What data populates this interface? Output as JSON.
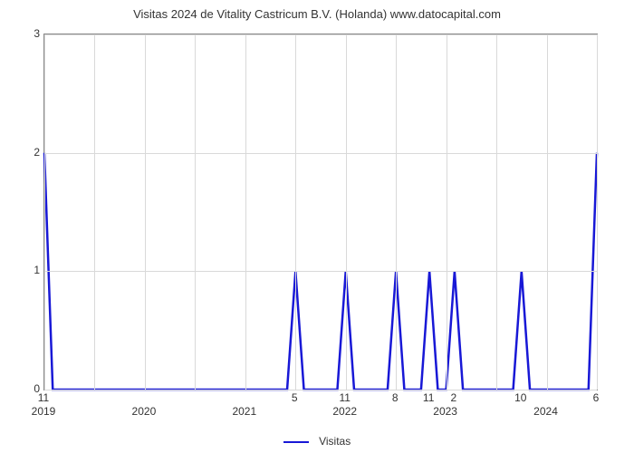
{
  "chart": {
    "type": "line",
    "title": "Visitas 2024 de Vitality Castricum B.V. (Holanda) www.datocapital.com",
    "title_fontsize": 13,
    "background_color": "#ffffff",
    "grid_color": "#d9d9d9",
    "border_color": "#888888",
    "line_color": "#1818d6",
    "line_width": 2.5,
    "y": {
      "min": 0,
      "max": 3,
      "ticks": [
        0,
        1,
        2,
        3
      ],
      "label_fontsize": 12
    },
    "x": {
      "domain_units": 66,
      "minor_ticks_every": 6,
      "major_labels": [
        {
          "u": 0,
          "text": "2019"
        },
        {
          "u": 12,
          "text": "2020"
        },
        {
          "u": 24,
          "text": "2021"
        },
        {
          "u": 36,
          "text": "2022"
        },
        {
          "u": 48,
          "text": "2023"
        },
        {
          "u": 60,
          "text": "2024"
        }
      ],
      "minor_labels": [
        {
          "u": 0,
          "text": "11"
        },
        {
          "u": 30,
          "text": "5"
        },
        {
          "u": 36,
          "text": "11"
        },
        {
          "u": 42,
          "text": "8"
        },
        {
          "u": 46,
          "text": "11"
        },
        {
          "u": 49,
          "text": "2"
        },
        {
          "u": 57,
          "text": "10"
        },
        {
          "u": 66,
          "text": "6"
        }
      ]
    },
    "data": [
      {
        "u": 0,
        "y": 2
      },
      {
        "u": 1,
        "y": 0
      },
      {
        "u": 29,
        "y": 0
      },
      {
        "u": 30,
        "y": 1
      },
      {
        "u": 31,
        "y": 0
      },
      {
        "u": 35,
        "y": 0
      },
      {
        "u": 36,
        "y": 1
      },
      {
        "u": 37,
        "y": 0
      },
      {
        "u": 41,
        "y": 0
      },
      {
        "u": 42,
        "y": 1
      },
      {
        "u": 43,
        "y": 0
      },
      {
        "u": 45,
        "y": 0
      },
      {
        "u": 46,
        "y": 1
      },
      {
        "u": 47,
        "y": 0
      },
      {
        "u": 48,
        "y": 0
      },
      {
        "u": 49,
        "y": 1
      },
      {
        "u": 50,
        "y": 0
      },
      {
        "u": 56,
        "y": 0
      },
      {
        "u": 57,
        "y": 1
      },
      {
        "u": 58,
        "y": 0
      },
      {
        "u": 65,
        "y": 0
      },
      {
        "u": 66,
        "y": 2
      }
    ],
    "legend": {
      "label": "Visitas",
      "position": "bottom-center"
    }
  }
}
